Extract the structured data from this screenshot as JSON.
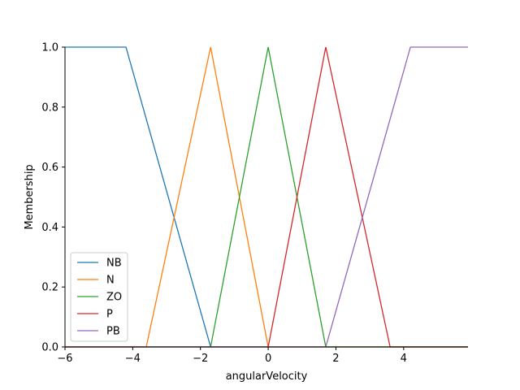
{
  "chart_data": {
    "type": "line",
    "title": "",
    "xlabel": "angularVelocity",
    "ylabel": "Membership",
    "xlim": [
      -6,
      5.9
    ],
    "ylim": [
      0,
      1
    ],
    "xticks": [
      -6,
      -4,
      -2,
      0,
      2,
      4
    ],
    "xtick_labels": [
      "−6",
      "−4",
      "−2",
      "0",
      "2",
      "4"
    ],
    "yticks": [
      0,
      0.2,
      0.4,
      0.6,
      0.8,
      1.0
    ],
    "ytick_labels": [
      "0.0",
      "0.2",
      "0.4",
      "0.6",
      "0.8",
      "1.0"
    ],
    "grid": false,
    "legend_position": "lower-left",
    "series": [
      {
        "name": "NB",
        "color": "#1f77b4",
        "x": [
          -6,
          -4.2,
          -1.7,
          5.9
        ],
        "y": [
          1,
          1,
          0,
          0
        ]
      },
      {
        "name": "N",
        "color": "#ff7f0e",
        "x": [
          -6,
          -3.6,
          -1.7,
          0,
          5.9
        ],
        "y": [
          0,
          0,
          1,
          0,
          0
        ]
      },
      {
        "name": "ZO",
        "color": "#2ca02c",
        "x": [
          -6,
          -1.7,
          0,
          1.7,
          5.9
        ],
        "y": [
          0,
          0,
          1,
          0,
          0
        ]
      },
      {
        "name": "P",
        "color": "#d62728",
        "x": [
          -6,
          0,
          1.7,
          3.6,
          5.9
        ],
        "y": [
          0,
          0,
          1,
          0,
          0
        ]
      },
      {
        "name": "PB",
        "color": "#9467bd",
        "x": [
          -6,
          1.7,
          4.2,
          5.9
        ],
        "y": [
          0,
          0,
          1,
          1
        ]
      }
    ]
  }
}
